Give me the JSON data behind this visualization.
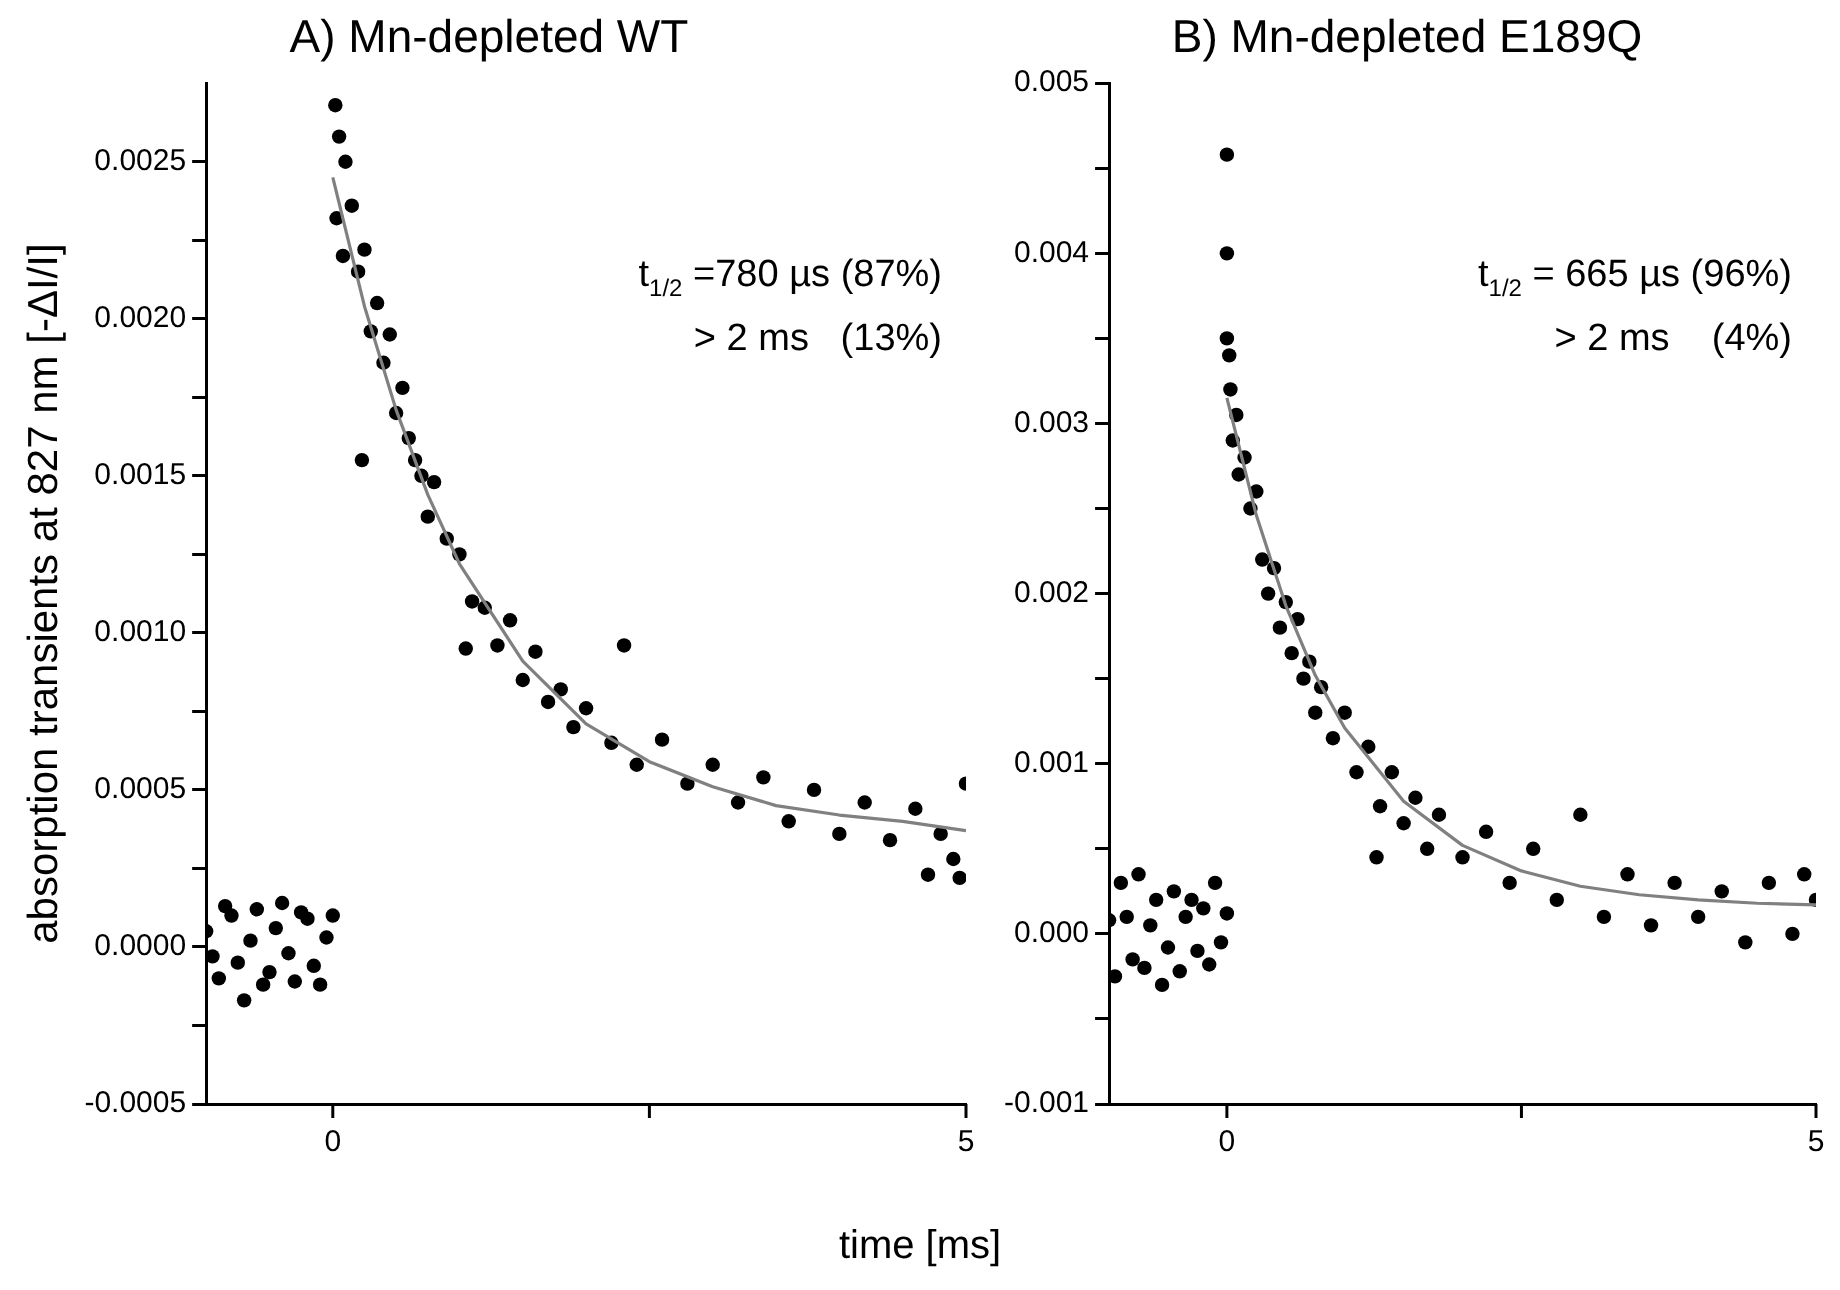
{
  "chart_data": [
    {
      "type": "scatter",
      "title": "A) Mn-depleted WT",
      "xlabel": "time [ms]",
      "ylabel": "absorption transients at 827 nm [-ΔI/I]",
      "xlim": [
        -1,
        5
      ],
      "xticks": [
        {
          "value": 0,
          "label": "0"
        },
        {
          "value": 2.5,
          "label": null
        },
        {
          "value": 5,
          "label": "5"
        }
      ],
      "ylim": [
        -0.0005,
        0.00275
      ],
      "yticks": [
        -0.0005,
        {
          "value": -0.00025,
          "label": null
        },
        {
          "value": 0,
          "label": "0.0000"
        },
        {
          "value": 0.00025,
          "label": null
        },
        0.0005,
        {
          "value": 0.00075,
          "label": null
        },
        {
          "value": 0.001,
          "label": "0.0010"
        },
        {
          "value": 0.00125,
          "label": null
        },
        0.0015,
        {
          "value": 0.00175,
          "label": null
        },
        {
          "value": 0.002,
          "label": "0.0020"
        },
        {
          "value": 0.00225,
          "label": null
        },
        0.0025
      ],
      "annotations": [
        "t$_{1/2}$ =780 µs (87%)",
        "> 2 ms   (13%)"
      ],
      "series": [
        {
          "type": "scatter",
          "marker": "circle",
          "color": "#000000",
          "x": [
            -1,
            -0.95,
            -0.9,
            -0.85,
            -0.8,
            -0.75,
            -0.7,
            -0.65,
            -0.6,
            -0.55,
            -0.5,
            -0.45,
            -0.4,
            -0.35,
            -0.3,
            -0.25,
            -0.2,
            -0.15,
            -0.1,
            -0.05,
            0,
            0.02,
            0.03,
            0.05,
            0.08,
            0.1,
            0.15,
            0.2,
            0.23,
            0.25,
            0.3,
            0.35,
            0.4,
            0.45,
            0.5,
            0.55,
            0.6,
            0.65,
            0.7,
            0.75,
            0.8,
            0.9,
            1,
            1.05,
            1.1,
            1.2,
            1.3,
            1.4,
            1.5,
            1.6,
            1.7,
            1.8,
            1.9,
            2,
            2.2,
            2.3,
            2.4,
            2.6,
            2.8,
            3,
            3.2,
            3.4,
            3.6,
            3.8,
            4,
            4.2,
            4.4,
            4.6,
            4.7,
            4.8,
            4.9,
            4.95,
            5
          ],
          "values": [
            5e-05,
            -3e-05,
            -0.0001,
            0.00013,
            0.0001,
            -5e-05,
            -0.00017,
            2e-05,
            0.00012,
            -0.00012,
            -8e-05,
            6e-05,
            0.00014,
            -2e-05,
            -0.00011,
            0.00011,
            9e-05,
            -6e-05,
            -0.00012,
            3e-05,
            0.0001,
            0.00268,
            0.00232,
            0.00258,
            0.0022,
            0.0025,
            0.00236,
            0.00215,
            0.00155,
            0.00222,
            0.00196,
            0.00205,
            0.00186,
            0.00195,
            0.0017,
            0.00178,
            0.00162,
            0.00155,
            0.0015,
            0.00137,
            0.00148,
            0.0013,
            0.00125,
            0.00095,
            0.0011,
            0.00108,
            0.00096,
            0.00104,
            0.00085,
            0.00094,
            0.00078,
            0.00082,
            0.0007,
            0.00076,
            0.00065,
            0.00096,
            0.00058,
            0.00066,
            0.00052,
            0.00058,
            0.00046,
            0.00054,
            0.0004,
            0.0005,
            0.00036,
            0.00046,
            0.00034,
            0.00044,
            0.00023,
            0.00036,
            0.00028,
            0.00022,
            0.00052
          ]
        },
        {
          "type": "line",
          "color": "#808080",
          "x": [
            0,
            0.25,
            0.5,
            0.75,
            1,
            1.5,
            2,
            2.5,
            3,
            3.5,
            4,
            4.5,
            5
          ],
          "values": [
            0.00245,
            0.00204,
            0.00171,
            0.00144,
            0.00122,
            0.00091,
            0.00071,
            0.00059,
            0.00051,
            0.00045,
            0.00042,
            0.0004,
            0.00037
          ]
        }
      ]
    },
    {
      "type": "scatter",
      "title": "B) Mn-depleted E189Q",
      "xlim": [
        -1,
        5
      ],
      "xticks": [
        {
          "value": 0,
          "label": "0"
        },
        {
          "value": 2.5,
          "label": null
        },
        {
          "value": 5,
          "label": "5"
        }
      ],
      "ylim": [
        -0.001,
        0.005
      ],
      "yticks": [
        -0.001,
        {
          "value": -0.0005,
          "label": null
        },
        {
          "value": 0,
          "label": "0.000"
        },
        {
          "value": 0.0005,
          "label": null
        },
        0.001,
        {
          "value": 0.0015,
          "label": null
        },
        0.002,
        {
          "value": 0.0025,
          "label": null
        },
        0.003,
        {
          "value": 0.0035,
          "label": null
        },
        0.004,
        {
          "value": 0.0045,
          "label": null
        },
        0.005
      ],
      "annotations": [
        "t$_{1/2}$ = 665 µs (96%)",
        "> 2 ms    (4%)"
      ],
      "series": [
        {
          "type": "scatter",
          "marker": "circle",
          "color": "#000000",
          "x": [
            -1,
            -0.95,
            -0.9,
            -0.85,
            -0.8,
            -0.75,
            -0.7,
            -0.65,
            -0.6,
            -0.55,
            -0.5,
            -0.45,
            -0.4,
            -0.35,
            -0.3,
            -0.25,
            -0.2,
            -0.15,
            -0.1,
            -0.05,
            0,
            0,
            0,
            0,
            0.02,
            0.03,
            0.05,
            0.08,
            0.1,
            0.15,
            0.2,
            0.25,
            0.3,
            0.35,
            0.4,
            0.45,
            0.5,
            0.55,
            0.6,
            0.65,
            0.7,
            0.75,
            0.8,
            0.9,
            1,
            1.1,
            1.2,
            1.27,
            1.3,
            1.4,
            1.5,
            1.6,
            1.7,
            1.8,
            2,
            2.2,
            2.4,
            2.6,
            2.8,
            3,
            3.2,
            3.4,
            3.6,
            3.8,
            4,
            4.2,
            4.4,
            4.6,
            4.8,
            4.9,
            5
          ],
          "values": [
            8e-05,
            -0.00025,
            0.0003,
            0.0001,
            -0.00015,
            0.00035,
            -0.0002,
            5e-05,
            0.0002,
            -0.0003,
            -8e-05,
            0.00025,
            -0.00022,
            0.0001,
            0.0002,
            -0.0001,
            0.00015,
            -0.00018,
            0.0003,
            -5e-05,
            0.00012,
            0.00458,
            0.004,
            0.0035,
            0.0034,
            0.0032,
            0.0029,
            0.00305,
            0.0027,
            0.0028,
            0.0025,
            0.0026,
            0.0022,
            0.002,
            0.00215,
            0.0018,
            0.00195,
            0.00165,
            0.00185,
            0.0015,
            0.0016,
            0.0013,
            0.00145,
            0.00115,
            0.0013,
            0.00095,
            0.0011,
            0.00045,
            0.00075,
            0.00095,
            0.00065,
            0.0008,
            0.0005,
            0.0007,
            0.00045,
            0.0006,
            0.0003,
            0.0005,
            0.0002,
            0.0007,
            0.0001,
            0.00035,
            5e-05,
            0.0003,
            0.0001,
            0.00025,
            -5e-05,
            0.0003,
            0,
            0.00035,
            0.0002
          ]
        },
        {
          "type": "line",
          "color": "#808080",
          "x": [
            0,
            0.25,
            0.5,
            0.75,
            1,
            1.5,
            2,
            2.5,
            3,
            3.5,
            4,
            4.5,
            5
          ],
          "values": [
            0.00315,
            0.00246,
            0.00193,
            0.00152,
            0.00121,
            0.00078,
            0.00052,
            0.00037,
            0.00028,
            0.00023,
            0.0002,
            0.00018,
            0.00017
          ]
        }
      ]
    }
  ]
}
